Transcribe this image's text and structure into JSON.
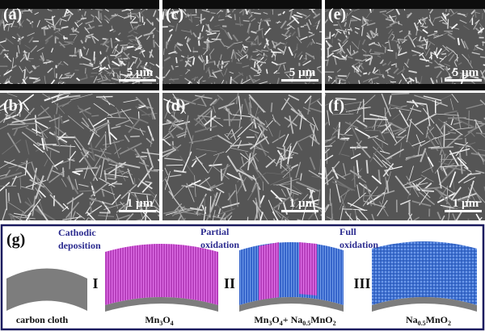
{
  "panels": [
    {
      "label": "(a)",
      "scale_bar": "5 µm"
    },
    {
      "label": "(c)",
      "scale_bar": "5 µm"
    },
    {
      "label": "(e)",
      "scale_bar": "5 µm"
    },
    {
      "label": "(b)",
      "scale_bar": "1 µm"
    },
    {
      "label": "(d)",
      "scale_bar": "1 µm"
    },
    {
      "label": "(f)",
      "scale_bar": "1 µm"
    }
  ],
  "scheme": {
    "label": "(g)",
    "steps": [
      {
        "lines": [
          "Cathodic",
          "deposition"
        ],
        "numeral": "I"
      },
      {
        "lines": [
          "Partial",
          "oxidation"
        ],
        "numeral": "II"
      },
      {
        "lines": [
          "Full",
          "oxidation"
        ],
        "numeral": "III"
      }
    ],
    "states": [
      {
        "parts": [
          "carbon cloth"
        ]
      },
      {
        "parts": [
          "Mn",
          "3",
          "O",
          "4"
        ]
      },
      {
        "parts": [
          "Mn",
          "3",
          "O",
          "4",
          "+ Na",
          "0.5",
          "MnO",
          "2"
        ]
      },
      {
        "parts": [
          "Na",
          "0.5",
          "MnO",
          "2"
        ]
      }
    ]
  }
}
